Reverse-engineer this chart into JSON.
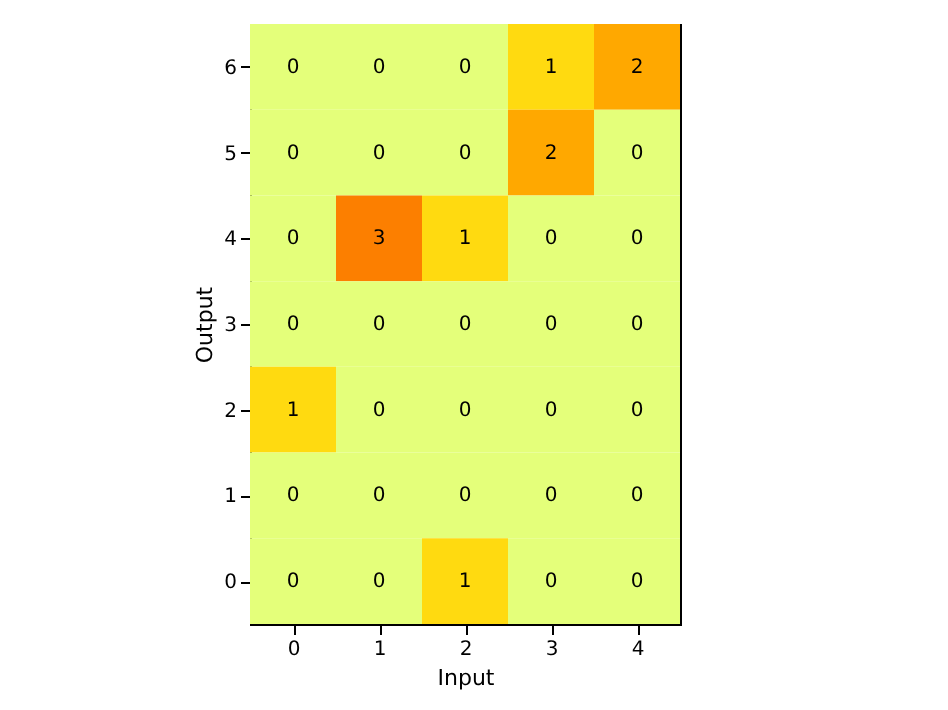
{
  "chart_data": {
    "type": "heatmap",
    "xlabel": "Input",
    "ylabel": "Output",
    "categories": [
      "0",
      "1",
      "2",
      "3",
      "4"
    ],
    "y_categories": [
      "6",
      "5",
      "4",
      "3",
      "2",
      "1",
      "0"
    ],
    "cells": [
      [
        0,
        0,
        0,
        1,
        2
      ],
      [
        0,
        0,
        0,
        2,
        0
      ],
      [
        0,
        3,
        1,
        0,
        0
      ],
      [
        0,
        0,
        0,
        0,
        0
      ],
      [
        1,
        0,
        0,
        0,
        0
      ],
      [
        0,
        0,
        0,
        0,
        0
      ],
      [
        0,
        0,
        1,
        0,
        0
      ]
    ],
    "colors": [
      "#e4ff7a",
      "#ffda10",
      "#ffa800",
      "#fc7f00"
    ],
    "data_labels": true,
    "grid": false
  }
}
